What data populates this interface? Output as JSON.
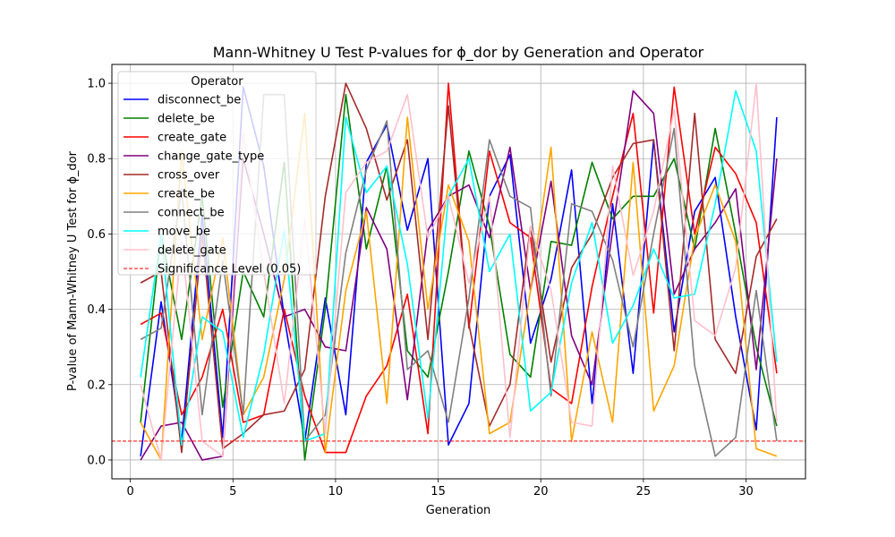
{
  "chart_data": {
    "type": "line",
    "title": "Mann-Whitney U Test P-values for ϕ_dor by Generation and Operator",
    "xlabel": "Generation",
    "ylabel": "P-value of Mann-Whitney U Test for ϕ_dor",
    "xlim": [
      -0.9,
      32.9
    ],
    "ylim": [
      -0.05,
      1.05
    ],
    "x_ticks": [
      0,
      5,
      10,
      15,
      20,
      25,
      30
    ],
    "y_ticks": [
      0.0,
      0.2,
      0.4,
      0.6,
      0.8,
      1.0
    ],
    "grid": true,
    "legend_title": "Operator",
    "legend_position": "top-left",
    "x": [
      0.5,
      1.5,
      2.5,
      3.5,
      4.5,
      5.5,
      6.5,
      7.5,
      8.5,
      9.5,
      10.5,
      11.5,
      12.5,
      13.5,
      14.5,
      15.5,
      16.5,
      17.5,
      18.5,
      19.5,
      20.5,
      21.5,
      22.5,
      23.5,
      24.5,
      25.5,
      26.5,
      27.5,
      28.5,
      29.5,
      30.5,
      31.5
    ],
    "series": [
      {
        "name": "disconnect_be",
        "color": "#0000ff",
        "values": [
          0.01,
          0.42,
          0.05,
          0.65,
          0.06,
          0.99,
          0.78,
          0.38,
          0.05,
          0.43,
          0.12,
          0.79,
          0.89,
          0.61,
          0.8,
          0.04,
          0.15,
          0.7,
          0.81,
          0.31,
          0.48,
          0.77,
          0.15,
          0.68,
          0.23,
          0.85,
          0.34,
          0.66,
          0.75,
          0.38,
          0.08,
          0.91
        ]
      },
      {
        "name": "delete_be",
        "color": "#008000",
        "values": [
          0.1,
          0.6,
          0.32,
          0.7,
          0.14,
          0.5,
          0.38,
          0.79,
          0.0,
          0.4,
          0.97,
          0.56,
          0.78,
          0.29,
          0.22,
          0.5,
          0.82,
          0.62,
          0.28,
          0.22,
          0.58,
          0.57,
          0.79,
          0.64,
          0.7,
          0.7,
          0.8,
          0.56,
          0.88,
          0.6,
          0.3,
          0.09
        ]
      },
      {
        "name": "create_gate",
        "color": "#ff0000",
        "values": [
          0.36,
          0.39,
          0.12,
          0.22,
          0.4,
          0.1,
          0.12,
          0.4,
          0.17,
          0.02,
          0.02,
          0.17,
          0.25,
          0.44,
          0.07,
          1.0,
          0.35,
          0.82,
          0.63,
          0.59,
          0.19,
          0.15,
          0.46,
          0.7,
          0.92,
          0.39,
          0.99,
          0.6,
          0.83,
          0.76,
          0.63,
          0.23
        ]
      },
      {
        "name": "change_gate_type",
        "color": "#800080",
        "values": [
          0.0,
          0.09,
          0.1,
          0.0,
          0.01,
          0.8,
          0.6,
          0.38,
          0.4,
          0.3,
          0.29,
          0.67,
          0.56,
          0.16,
          0.61,
          0.7,
          0.73,
          0.59,
          0.83,
          0.45,
          0.74,
          0.33,
          0.2,
          0.61,
          0.98,
          0.92,
          0.44,
          0.56,
          0.63,
          0.72,
          0.24,
          0.8
        ]
      },
      {
        "name": "cross_over",
        "color": "#a52a2a",
        "values": [
          0.47,
          0.5,
          0.02,
          0.6,
          0.03,
          0.07,
          0.12,
          0.13,
          0.24,
          0.7,
          1.0,
          0.88,
          0.69,
          0.85,
          0.32,
          0.94,
          0.36,
          0.09,
          0.2,
          0.62,
          0.26,
          0.51,
          0.6,
          0.75,
          0.84,
          0.85,
          0.29,
          0.92,
          0.32,
          0.23,
          0.54,
          0.64
        ]
      },
      {
        "name": "create_be",
        "color": "#ffa500",
        "values": [
          0.1,
          0.0,
          0.82,
          0.32,
          0.59,
          0.12,
          0.22,
          0.48,
          0.92,
          0.02,
          0.45,
          0.66,
          0.15,
          0.91,
          0.4,
          0.73,
          0.58,
          0.07,
          0.1,
          0.45,
          0.83,
          0.05,
          0.34,
          0.1,
          0.79,
          0.13,
          0.25,
          0.59,
          0.73,
          0.58,
          0.03,
          0.01
        ]
      },
      {
        "name": "connect_be",
        "color": "#808080",
        "values": [
          0.32,
          0.35,
          0.72,
          0.12,
          0.53,
          0.12,
          0.97,
          0.97,
          0.05,
          0.12,
          0.55,
          0.77,
          0.9,
          0.24,
          0.29,
          0.1,
          0.43,
          0.85,
          0.7,
          0.67,
          0.17,
          0.68,
          0.66,
          0.53,
          0.3,
          0.6,
          0.88,
          0.25,
          0.01,
          0.06,
          0.45,
          0.05
        ]
      },
      {
        "name": "move_be",
        "color": "#00ffff",
        "values": [
          0.22,
          0.6,
          0.04,
          0.38,
          0.34,
          0.06,
          0.28,
          0.61,
          0.05,
          0.07,
          0.91,
          0.71,
          0.78,
          0.52,
          0.11,
          0.7,
          0.8,
          0.5,
          0.6,
          0.13,
          0.18,
          0.47,
          0.63,
          0.31,
          0.41,
          0.56,
          0.43,
          0.44,
          0.68,
          0.98,
          0.82,
          0.26
        ]
      },
      {
        "name": "delete_gate",
        "color": "#ffc0cb",
        "values": [
          0.2,
          0.0,
          0.58,
          0.05,
          0.01,
          0.87,
          0.5,
          0.15,
          0.64,
          0.07,
          0.71,
          0.79,
          0.82,
          0.97,
          0.59,
          0.7,
          0.47,
          0.7,
          0.06,
          0.62,
          0.45,
          0.1,
          0.09,
          0.78,
          0.49,
          0.66,
          0.93,
          0.37,
          0.33,
          0.51,
          1.0,
          0.1
        ]
      }
    ],
    "reference_line": {
      "name": "Significance Level (0.05)",
      "value": 0.05,
      "color": "#ff0000",
      "style": "dashed"
    }
  }
}
